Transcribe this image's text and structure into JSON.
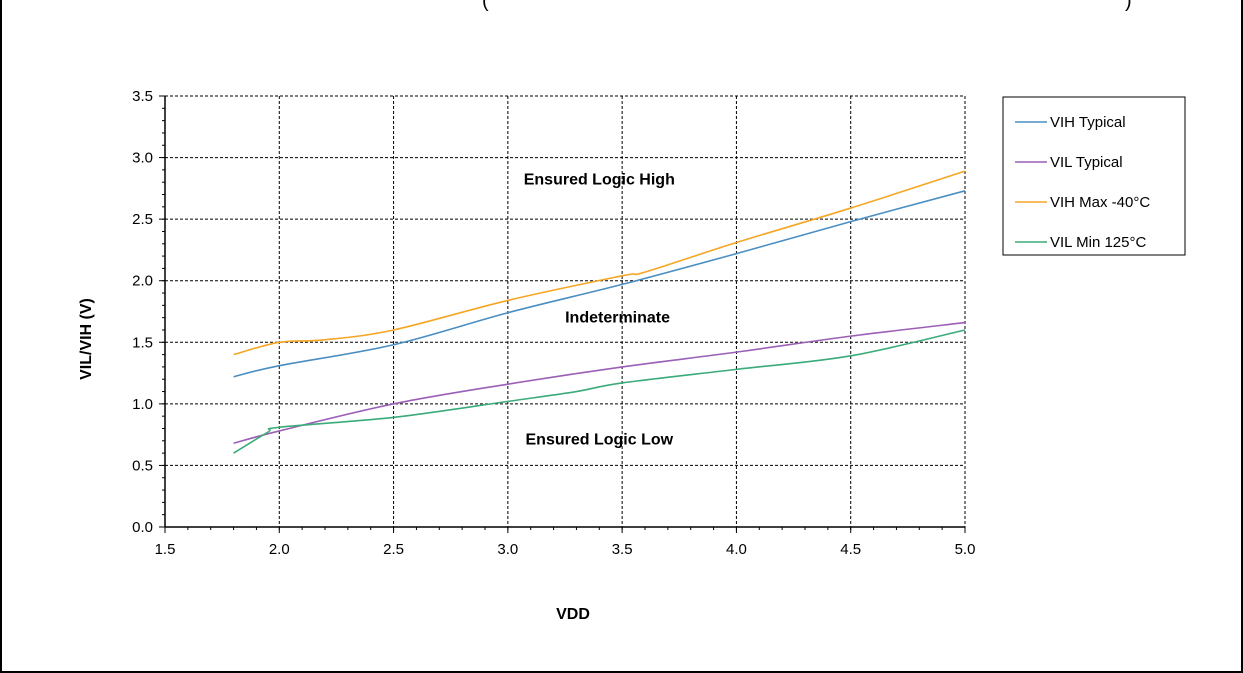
{
  "chart_data": {
    "type": "line",
    "xlabel": "VDD",
    "ylabel": "VIL/VIH (V)",
    "xlim": [
      1.5,
      5.0
    ],
    "ylim": [
      0.0,
      3.5
    ],
    "x_ticks": [
      "1.5",
      "2.0",
      "2.5",
      "3.0",
      "3.5",
      "4.0",
      "4.5",
      "5.0"
    ],
    "y_ticks": [
      "0.0",
      "0.5",
      "1.0",
      "1.5",
      "2.0",
      "2.5",
      "3.0",
      "3.5"
    ],
    "grid": true,
    "legend_position": "right",
    "series": [
      {
        "name": "VIH Typical",
        "color": "#4a8ec2",
        "x": [
          1.8,
          2.0,
          2.5,
          3.0,
          3.5,
          4.0,
          4.5,
          5.0
        ],
        "y": [
          1.22,
          1.31,
          1.48,
          1.74,
          1.97,
          2.22,
          2.48,
          2.73
        ]
      },
      {
        "name": "VIL Typical",
        "color": "#9b5fb6",
        "x": [
          1.8,
          2.0,
          2.5,
          3.0,
          3.5,
          4.0,
          4.5,
          5.0
        ],
        "y": [
          0.68,
          0.78,
          1.0,
          1.16,
          1.3,
          1.42,
          1.55,
          1.66
        ]
      },
      {
        "name": "VIH Max -40°C",
        "color": "#f5a623",
        "x": [
          1.8,
          2.0,
          2.2,
          2.5,
          3.0,
          3.5,
          3.6,
          4.0,
          4.5,
          5.0
        ],
        "y": [
          1.4,
          1.5,
          1.52,
          1.6,
          1.84,
          2.04,
          2.07,
          2.31,
          2.59,
          2.89
        ]
      },
      {
        "name": "VIL Min 125°C",
        "color": "#3aab79",
        "x": [
          1.8,
          1.95,
          2.0,
          2.5,
          3.0,
          3.3,
          3.5,
          4.0,
          4.5,
          5.0
        ],
        "y": [
          0.6,
          0.77,
          0.81,
          0.89,
          1.02,
          1.1,
          1.17,
          1.28,
          1.39,
          1.6
        ]
      }
    ],
    "annotations": [
      {
        "text": "Ensured Logic High",
        "x": 3.4,
        "y": 2.78
      },
      {
        "text": "Indeterminate",
        "x": 3.48,
        "y": 1.66
      },
      {
        "text": "Ensured Logic Low",
        "x": 3.4,
        "y": 0.67
      }
    ]
  }
}
